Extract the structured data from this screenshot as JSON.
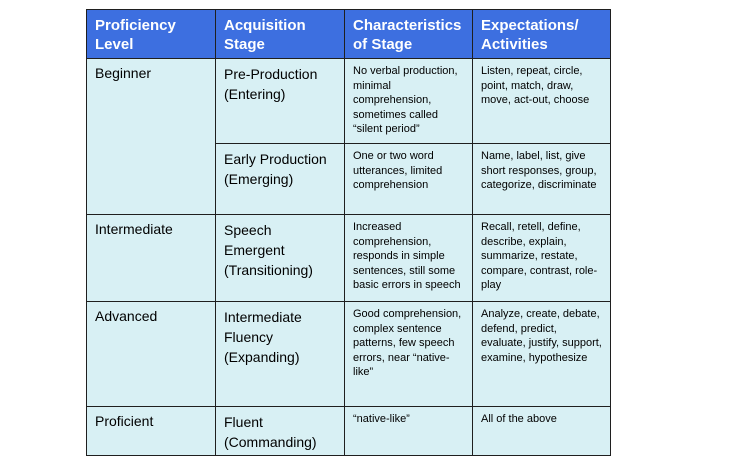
{
  "table": {
    "headers": [
      "Proficiency Level",
      "Acquisition Stage",
      "Characteristics of Stage",
      "Expectations/ Activities"
    ],
    "rows": [
      {
        "level": "Beginner",
        "stage": "Pre-Production (Entering)",
        "characteristics": "No verbal production, minimal comprehension, sometimes called “silent period”",
        "activities": "Listen, repeat, circle, point, match, draw, move, act-out, choose"
      },
      {
        "level": "",
        "stage": "Early Production (Emerging)",
        "characteristics": "One or two word utterances, limited comprehension",
        "activities": "Name, label, list, give short responses, group, categorize, discriminate"
      },
      {
        "level": "Intermediate",
        "stage": "Speech Emergent (Transitioning)",
        "characteristics": "Increased comprehension, responds in simple sentences, still some basic errors in speech",
        "activities": "Recall, retell, define, describe, explain, summarize, restate, compare, contrast, role-play"
      },
      {
        "level": "Advanced",
        "stage": "Intermediate Fluency (Expanding)",
        "characteristics": "Good comprehension, complex sentence patterns, few speech errors,  near “native-like”",
        "activities": "Analyze, create, debate, defend, predict, evaluate, justify, support, examine, hypothesize"
      },
      {
        "level": "Proficient",
        "stage": "Fluent (Commanding)",
        "characteristics": "“native-like”",
        "activities": "All of the above"
      }
    ]
  },
  "colors": {
    "header_bg": "#3d6fe0",
    "header_text": "#ffffff",
    "cell_bg": "#d8f0f4",
    "border": "#1f1f1f"
  }
}
